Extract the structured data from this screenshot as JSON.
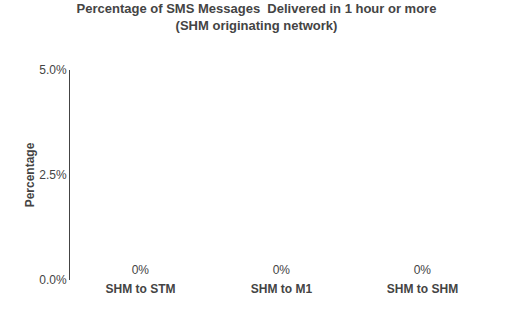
{
  "chart_data": {
    "type": "bar",
    "title": "Percentage of SMS Messages  Delivered in 1 hour or more",
    "subtitle": "(SHM originating network)",
    "categories": [
      "SHM to STM",
      "SHM to M1",
      "SHM to SHM"
    ],
    "values": [
      0,
      0,
      0
    ],
    "value_labels": [
      "0%",
      "0%",
      "0%"
    ],
    "data_labels": true,
    "color": "#4a4a4a",
    "ylabel": "Percentage",
    "ylim": [
      0,
      0.05
    ],
    "yticks": [
      {
        "value": 0.0,
        "label": "0.0%"
      },
      {
        "value": 0.025,
        "label": "2.5%"
      },
      {
        "value": 0.05,
        "label": "5.0%"
      }
    ],
    "grid": false
  }
}
